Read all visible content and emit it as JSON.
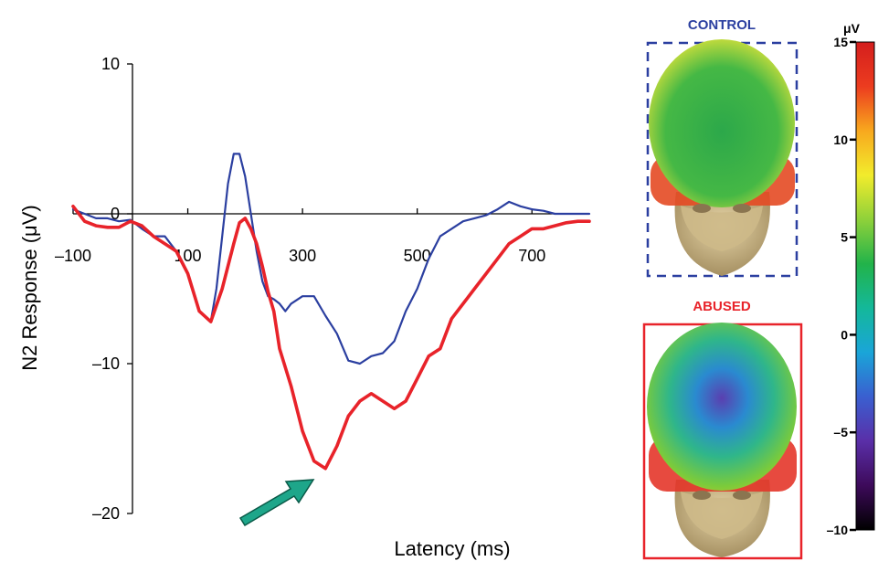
{
  "chart_data": {
    "type": "line",
    "xlabel": "Latency (ms)",
    "ylabel": "N2 Response (μV)",
    "xlim": [
      -100,
      800
    ],
    "ylim": [
      -20,
      10
    ],
    "x_ticks": [
      -100,
      100,
      300,
      500,
      700
    ],
    "x_tick_labels": [
      "–100",
      "100",
      "300",
      "500",
      "700"
    ],
    "y_ticks": [
      10,
      0,
      -10,
      -20
    ],
    "y_tick_labels": [
      "10",
      "0",
      "–10",
      "–20"
    ],
    "grid": false,
    "series": [
      {
        "color": "#2b3fa0",
        "x": [
          -100,
          -80,
          -60,
          -40,
          -20,
          0,
          20,
          40,
          60,
          80,
          100,
          120,
          140,
          150,
          160,
          170,
          180,
          190,
          200,
          210,
          220,
          230,
          240,
          250,
          260,
          270,
          280,
          300,
          320,
          340,
          360,
          380,
          400,
          420,
          440,
          460,
          480,
          500,
          520,
          540,
          560,
          580,
          600,
          620,
          640,
          660,
          680,
          700,
          720,
          740,
          760,
          780,
          800
        ],
        "y": [
          0.3,
          0.0,
          -0.3,
          -0.3,
          -0.5,
          -0.4,
          -1.0,
          -1.5,
          -1.5,
          -2.5,
          -4.0,
          -6.5,
          -7.2,
          -5.0,
          -1.5,
          2.0,
          4.0,
          4.0,
          2.5,
          0.0,
          -2.5,
          -4.5,
          -5.5,
          -5.7,
          -6.0,
          -6.5,
          -6.0,
          -5.5,
          -5.5,
          -6.8,
          -8.0,
          -9.8,
          -10.0,
          -9.5,
          -9.3,
          -8.5,
          -6.5,
          -5.0,
          -3.0,
          -1.5,
          -1.0,
          -0.5,
          -0.3,
          -0.1,
          0.3,
          0.8,
          0.5,
          0.3,
          0.2,
          0.0,
          0.0,
          0.0,
          0.0
        ]
      },
      {
        "color": "#e8232a",
        "x": [
          -100,
          -80,
          -60,
          -40,
          -20,
          0,
          20,
          40,
          60,
          80,
          100,
          120,
          140,
          160,
          180,
          190,
          200,
          210,
          220,
          230,
          240,
          250,
          260,
          280,
          300,
          320,
          340,
          360,
          380,
          400,
          420,
          440,
          460,
          480,
          500,
          520,
          540,
          560,
          580,
          600,
          620,
          640,
          660,
          680,
          700,
          720,
          740,
          760,
          780,
          800
        ],
        "y": [
          0.5,
          -0.5,
          -0.8,
          -0.9,
          -0.9,
          -0.5,
          -0.8,
          -1.5,
          -2.0,
          -2.5,
          -4.0,
          -6.5,
          -7.2,
          -5.0,
          -2.0,
          -0.6,
          -0.3,
          -1.0,
          -2.0,
          -3.5,
          -5.2,
          -6.5,
          -9.0,
          -11.5,
          -14.5,
          -16.5,
          -17.0,
          -15.5,
          -13.5,
          -12.5,
          -12.0,
          -12.5,
          -13.0,
          -12.5,
          -11.0,
          -9.5,
          -9.0,
          -7.0,
          -6.0,
          -5.0,
          -4.0,
          -3.0,
          -2.0,
          -1.5,
          -1.0,
          -1.0,
          -0.8,
          -0.6,
          -0.5,
          -0.5
        ]
      }
    ],
    "annotations": [
      {
        "type": "arrow",
        "color": "#1ea68a",
        "points_to": [
          80,
          -17
        ]
      }
    ]
  },
  "panels": {
    "control_label": "CONTROL",
    "control_color": "#2b3fa0",
    "abused_label": "ABUSED",
    "abused_color": "#e8232a"
  },
  "colorbar": {
    "unit_label": "μV",
    "min": -10,
    "max": 15,
    "ticks": [
      15,
      10,
      5,
      0,
      -5,
      -10
    ],
    "tick_labels": [
      "15",
      "10",
      "5",
      "0",
      "–5",
      "–10"
    ],
    "colormap": [
      "#000000",
      "#3d0a5a",
      "#5a2fa8",
      "#3a5fd0",
      "#1aa5d8",
      "#14b89a",
      "#22b34a",
      "#8fd13a",
      "#f2ec2c",
      "#f8a81e",
      "#ec3c1f",
      "#d41e1e"
    ]
  }
}
